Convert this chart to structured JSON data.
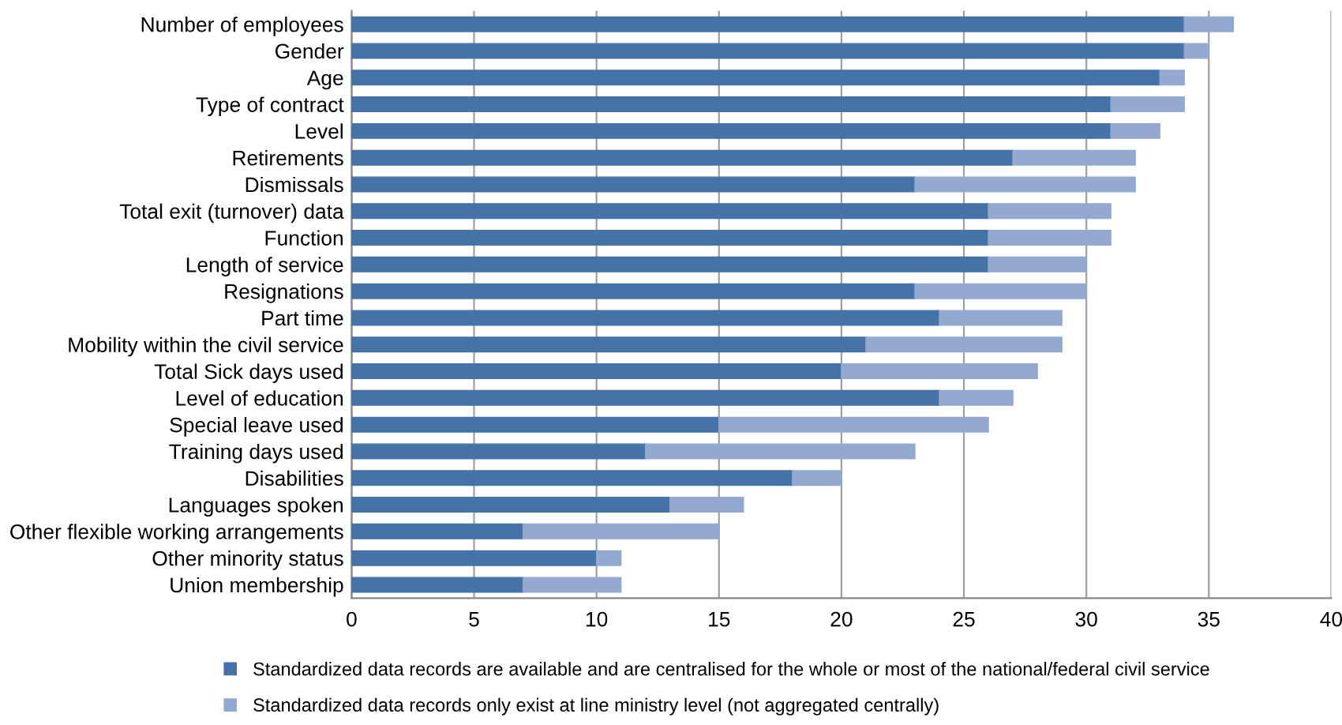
{
  "chart_data": {
    "type": "bar",
    "orientation": "horizontal",
    "stacked": true,
    "grid": "x",
    "legend": "bottom",
    "categories": [
      "Number of employees",
      "Gender",
      "Age",
      "Type of contract",
      "Level",
      "Retirements",
      "Dismissals",
      "Total exit (turnover) data",
      "Function",
      "Length of service",
      "Resignations",
      "Part time",
      "Mobility within the civil service",
      "Total Sick days used",
      "Level of education",
      "Special leave used",
      "Training days used",
      "Disabilities",
      "Languages spoken",
      "Other flexible working arrangements",
      "Other minority status",
      "Union membership"
    ],
    "series": [
      {
        "name": "Standardized data records are available and are centralised for the whole or most of the national/federal civil service",
        "color": "#4572a7",
        "values": [
          34,
          34,
          33,
          31,
          31,
          27,
          23,
          26,
          26,
          26,
          23,
          24,
          21,
          20,
          24,
          15,
          12,
          18,
          13,
          7,
          10,
          7
        ]
      },
      {
        "name": "Standardized data records only exist at line ministry level (not aggregated centrally)",
        "color": "#93a9d0",
        "values": [
          2,
          1,
          1,
          3,
          2,
          5,
          9,
          5,
          5,
          4,
          7,
          5,
          8,
          8,
          3,
          11,
          11,
          2,
          3,
          8,
          1,
          4
        ]
      }
    ],
    "xlim": [
      0,
      40
    ],
    "xticks": [
      0,
      5,
      10,
      15,
      20,
      25,
      30,
      35,
      40
    ]
  }
}
